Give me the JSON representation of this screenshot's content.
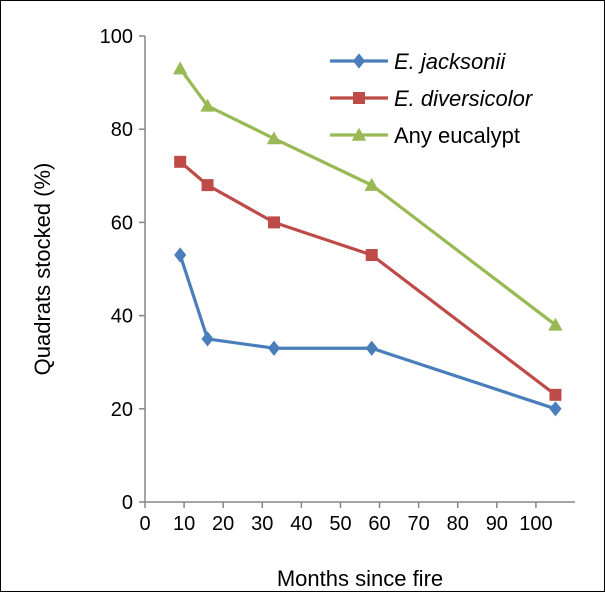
{
  "chart_data": {
    "type": "line",
    "xlabel": "Months since fire",
    "ylabel": "Quadrats stocked (%)",
    "xlim": [
      0,
      110
    ],
    "ylim": [
      0,
      100
    ],
    "xticks": [
      0,
      10,
      20,
      30,
      40,
      50,
      60,
      70,
      80,
      90,
      100
    ],
    "yticks": [
      0,
      20,
      40,
      60,
      80,
      100
    ],
    "grid": false,
    "legend": "top-right",
    "series": [
      {
        "name": "E. jacksonii",
        "italic": true,
        "color": "#4a7ebb",
        "marker": "diamond",
        "x": [
          9,
          16,
          33,
          58,
          105
        ],
        "y": [
          53,
          35,
          33,
          33,
          20
        ]
      },
      {
        "name": "E. diversicolor",
        "italic": true,
        "color": "#be4b48",
        "marker": "square",
        "x": [
          9,
          16,
          33,
          58,
          105
        ],
        "y": [
          73,
          68,
          60,
          53,
          23
        ]
      },
      {
        "name": "Any eucalypt",
        "italic": false,
        "color": "#98b954",
        "marker": "triangle",
        "x": [
          9,
          16,
          33,
          58,
          105
        ],
        "y": [
          93,
          85,
          78,
          68,
          38
        ]
      }
    ]
  }
}
